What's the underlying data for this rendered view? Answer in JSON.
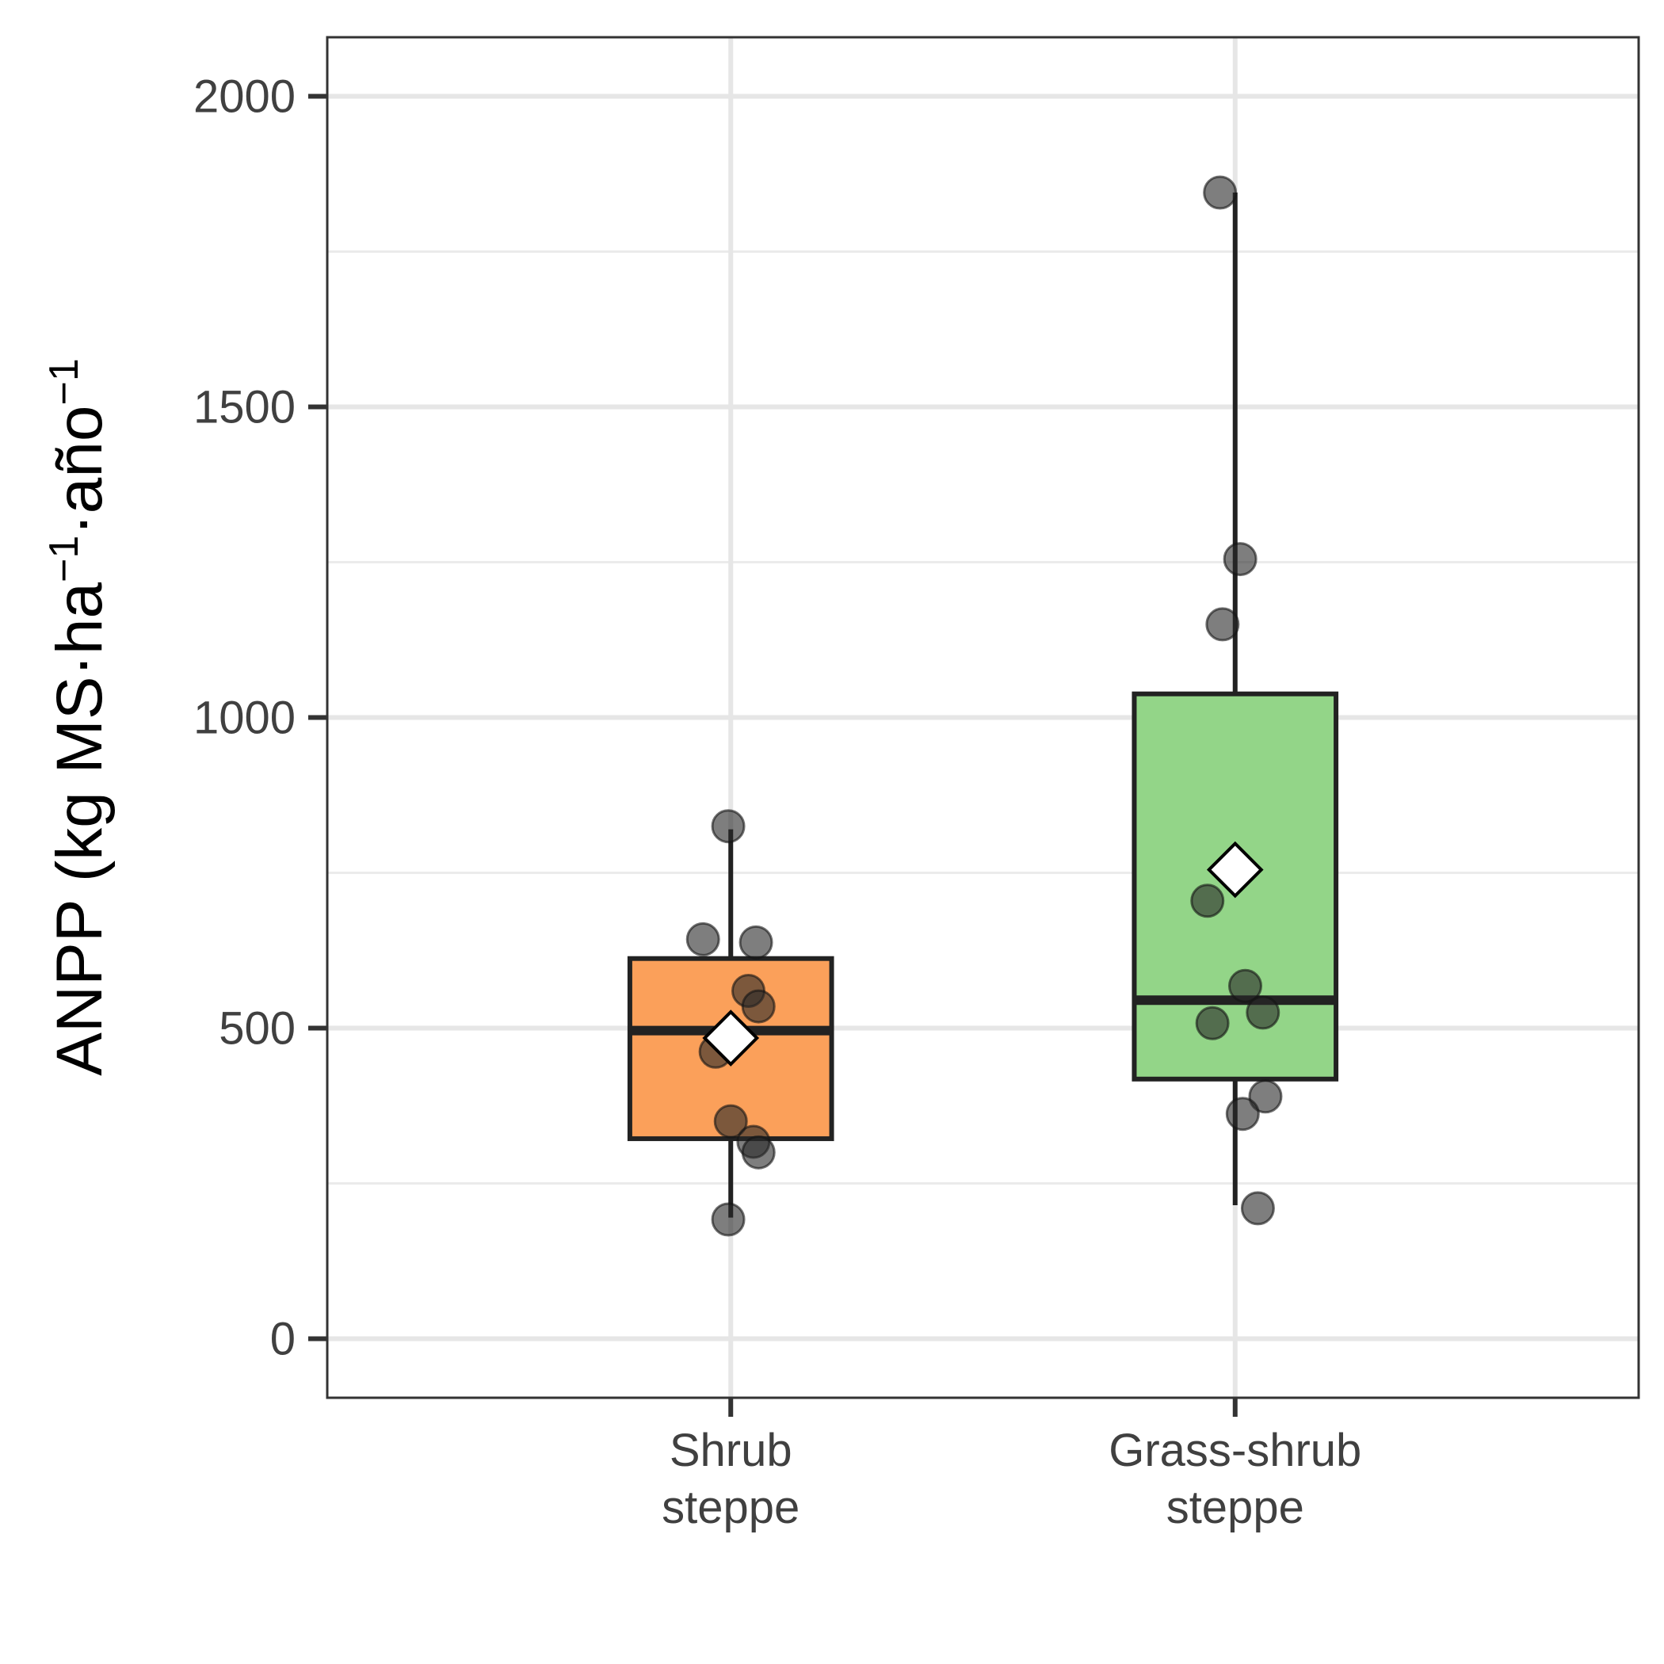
{
  "chart_data": {
    "type": "boxplot",
    "ylabel": {
      "main": "ANPP (kg MS·ha",
      "sup1": "−1",
      "mid": "·año",
      "sup2": "−1"
    },
    "xlabel": "",
    "ylim": [
      -95,
      2095
    ],
    "y_ticks": [
      0,
      500,
      1000,
      1500,
      2000
    ],
    "y_minor_ticks": [
      250,
      750,
      1250,
      1750
    ],
    "grid": true,
    "categories": [
      {
        "lines": [
          "Shrub",
          "steppe"
        ]
      },
      {
        "lines": [
          "Grass-shrub",
          "steppe"
        ]
      }
    ],
    "groups": [
      {
        "color": "#fba05a",
        "q1": 322,
        "median": 496,
        "q3": 612,
        "whisker_low": 195,
        "whisker_high": 820,
        "mean": 484,
        "points": [
          {
            "x": -0.005,
            "y": 825
          },
          {
            "x": -0.055,
            "y": 643
          },
          {
            "x": 0.05,
            "y": 638
          },
          {
            "x": 0.035,
            "y": 560
          },
          {
            "x": 0.055,
            "y": 535
          },
          {
            "x": -0.03,
            "y": 462
          },
          {
            "x": 0.0,
            "y": 350
          },
          {
            "x": 0.045,
            "y": 317
          },
          {
            "x": 0.055,
            "y": 300
          },
          {
            "x": -0.005,
            "y": 192
          }
        ]
      },
      {
        "color": "#93d588",
        "q1": 418,
        "median": 545,
        "q3": 1038,
        "whisker_low": 215,
        "whisker_high": 1845,
        "mean": 755,
        "points": [
          {
            "x": -0.03,
            "y": 1845
          },
          {
            "x": 0.01,
            "y": 1255
          },
          {
            "x": -0.025,
            "y": 1150
          },
          {
            "x": -0.055,
            "y": 705
          },
          {
            "x": 0.02,
            "y": 568
          },
          {
            "x": 0.055,
            "y": 525
          },
          {
            "x": -0.045,
            "y": 508
          },
          {
            "x": 0.06,
            "y": 390
          },
          {
            "x": 0.015,
            "y": 362
          },
          {
            "x": 0.045,
            "y": 210
          }
        ]
      }
    ]
  }
}
